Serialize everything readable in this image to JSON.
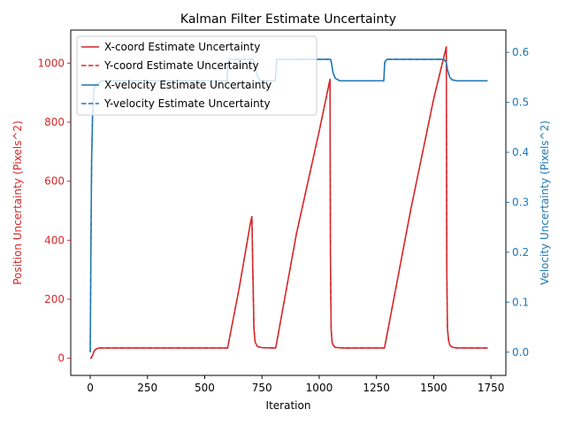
{
  "chart_data": {
    "type": "line",
    "title": "Kalman Filter Estimate Uncertainty",
    "xlabel": "Iteration",
    "ylabel_left": "Position Uncertainty (Pixels^2)",
    "ylabel_right": "Velocity Uncertainty (Pixels^2)",
    "xlim": [
      -85,
      1815
    ],
    "ylim_left": [
      -58,
      1112
    ],
    "ylim_right": [
      -0.0465,
      0.6445
    ],
    "x_ticks": [
      0,
      250,
      500,
      750,
      1000,
      1250,
      1500,
      1750
    ],
    "y_left_ticks": [
      0,
      200,
      400,
      600,
      800,
      1000
    ],
    "y_right_ticks": [
      0.0,
      0.1,
      0.2,
      0.3,
      0.4,
      0.5,
      0.6
    ],
    "colors": {
      "left": "#d62728",
      "right": "#1f77b4",
      "axis": "#000000"
    },
    "legend_position": "upper-left",
    "legend": [
      "X-coord Estimate Uncertainty",
      "Y-coord Estimate Uncertainty",
      "X-velocity Estimate Uncertainty",
      "Y-velocity Estimate Uncertainty"
    ],
    "series": [
      {
        "name": "X-coord Estimate Uncertainty",
        "axis": "left",
        "style": "solid",
        "color": "#d62728",
        "x": [
          0,
          5,
          10,
          15,
          20,
          30,
          40,
          600,
          650,
          700,
          706,
          710,
          715,
          720,
          730,
          750,
          800,
          810,
          900,
          1000,
          1047,
          1049,
          1052,
          1056,
          1060,
          1070,
          1100,
          1285,
          1400,
          1500,
          1555,
          1557,
          1560,
          1565,
          1570,
          1580,
          1600,
          1735
        ],
        "y": [
          0,
          2,
          10,
          20,
          28,
          33,
          35,
          35,
          236,
          460,
          480,
          300,
          100,
          55,
          40,
          36,
          35,
          35,
          420,
          770,
          945,
          350,
          100,
          55,
          45,
          37,
          35,
          35,
          505,
          880,
          1055,
          300,
          100,
          60,
          45,
          38,
          35,
          35
        ]
      },
      {
        "name": "Y-coord Estimate Uncertainty",
        "axis": "left",
        "style": "dashed",
        "color": "#d62728",
        "x": [
          0,
          5,
          10,
          15,
          20,
          30,
          40,
          600,
          650,
          700,
          706,
          710,
          715,
          720,
          730,
          750,
          800,
          810,
          900,
          1000,
          1047,
          1049,
          1052,
          1056,
          1060,
          1070,
          1100,
          1285,
          1400,
          1500,
          1555,
          1557,
          1560,
          1565,
          1570,
          1580,
          1600,
          1735
        ],
        "y": [
          0,
          2,
          10,
          20,
          28,
          33,
          35,
          35,
          236,
          460,
          480,
          300,
          100,
          55,
          40,
          36,
          35,
          35,
          420,
          770,
          945,
          350,
          100,
          55,
          45,
          37,
          35,
          35,
          505,
          880,
          1055,
          300,
          100,
          60,
          45,
          38,
          35,
          35
        ]
      },
      {
        "name": "X-velocity Estimate Uncertainty",
        "axis": "right",
        "style": "solid",
        "color": "#1f77b4",
        "x": [
          0,
          3,
          6,
          10,
          15,
          20,
          30,
          40,
          50,
          597,
          600,
          606,
          710,
          718,
          725,
          735,
          745,
          808,
          815,
          1050,
          1055,
          1060,
          1070,
          1090,
          1282,
          1286,
          1295,
          1545,
          1555,
          1560,
          1570,
          1580,
          1600,
          1735
        ],
        "y": [
          0.0,
          0.2,
          0.38,
          0.47,
          0.52,
          0.534,
          0.537,
          0.54,
          0.543,
          0.543,
          0.57,
          0.586,
          0.586,
          0.575,
          0.56,
          0.548,
          0.543,
          0.543,
          0.586,
          0.586,
          0.575,
          0.56,
          0.548,
          0.543,
          0.543,
          0.58,
          0.586,
          0.586,
          0.58,
          0.565,
          0.55,
          0.545,
          0.543,
          0.543
        ]
      },
      {
        "name": "Y-velocity Estimate Uncertainty",
        "axis": "right",
        "style": "dashed",
        "color": "#1f77b4",
        "x": [
          0,
          3,
          6,
          10,
          15,
          20,
          30,
          40,
          50,
          597,
          600,
          606,
          710,
          718,
          725,
          735,
          745,
          808,
          815,
          1050,
          1055,
          1060,
          1070,
          1090,
          1282,
          1286,
          1295,
          1545,
          1555,
          1560,
          1570,
          1580,
          1600,
          1735
        ],
        "y": [
          0.0,
          0.2,
          0.38,
          0.47,
          0.52,
          0.534,
          0.537,
          0.54,
          0.543,
          0.543,
          0.57,
          0.586,
          0.586,
          0.575,
          0.56,
          0.548,
          0.543,
          0.543,
          0.586,
          0.586,
          0.575,
          0.56,
          0.548,
          0.543,
          0.543,
          0.58,
          0.586,
          0.586,
          0.58,
          0.565,
          0.55,
          0.545,
          0.543,
          0.543
        ]
      }
    ]
  }
}
